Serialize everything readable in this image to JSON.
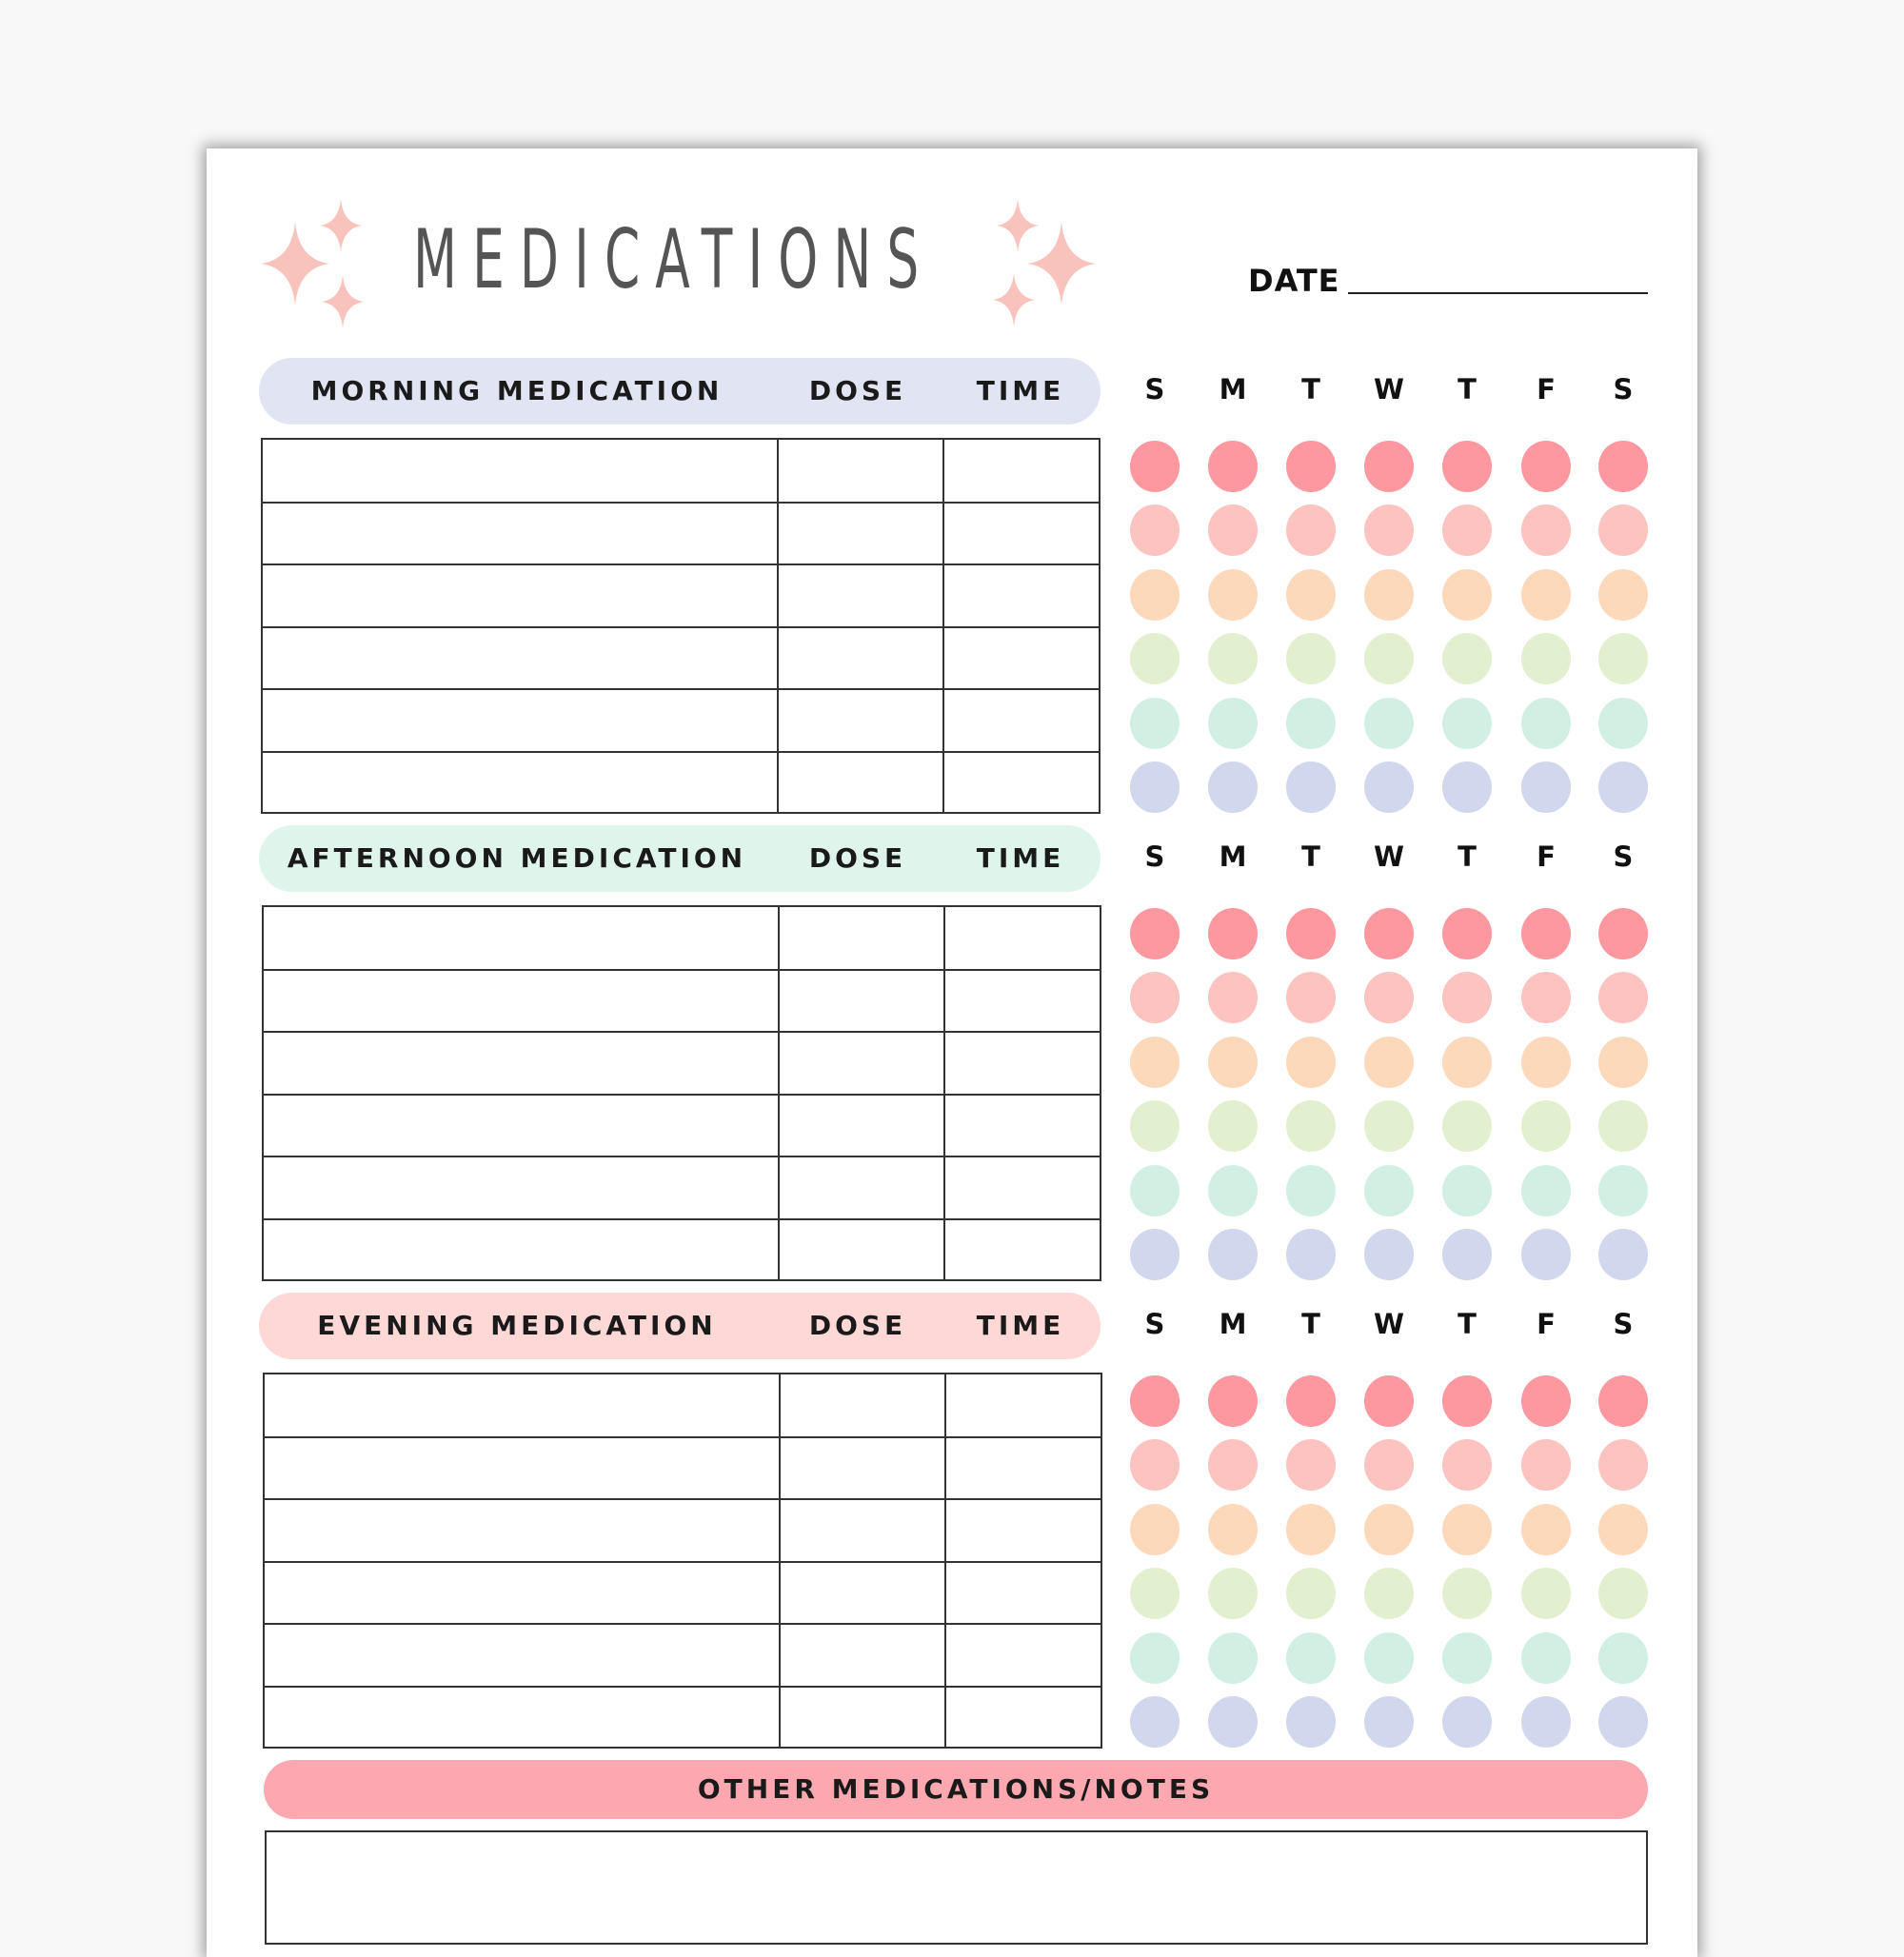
{
  "title": "MEDICATIONS",
  "date_label": "DATE",
  "days": [
    "S",
    "M",
    "T",
    "W",
    "T",
    "F",
    "S"
  ],
  "sections": [
    {
      "label": "MORNING MEDICATION",
      "dose": "DOSE",
      "time": "TIME",
      "color": "#e0e4f3"
    },
    {
      "label": "AFTERNOON MEDICATION",
      "dose": "DOSE",
      "time": "TIME",
      "color": "#dff5ec"
    },
    {
      "label": "EVENING MEDICATION",
      "dose": "DOSE",
      "time": "TIME",
      "color": "#fdd8d6"
    }
  ],
  "rows_per_section": 6,
  "dot_colors": [
    "#fd97a0",
    "#fcc3c0",
    "#fdd9bc",
    "#e2f0cf",
    "#d1f0e3",
    "#d1d7ec"
  ],
  "sparkle_color": "#f9c3bd",
  "notes": {
    "label": "OTHER MEDICATIONS/NOTES",
    "color": "#fda8b0"
  }
}
